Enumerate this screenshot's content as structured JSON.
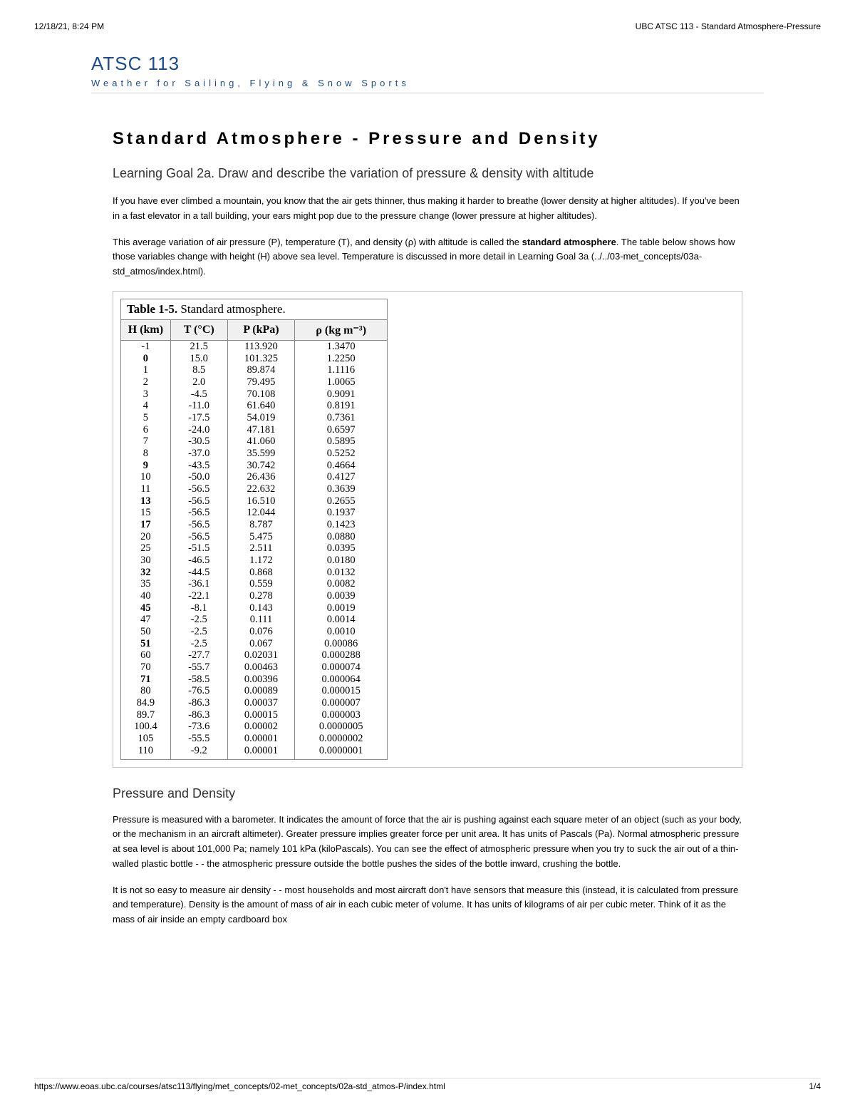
{
  "print": {
    "datetime": "12/18/21, 8:24 PM",
    "doc_title": "UBC ATSC 113 - Standard Atmosphere-Pressure"
  },
  "course": {
    "code": "ATSC 113",
    "subtitle": "Weather for Sailing, Flying & Snow Sports"
  },
  "title": "Standard Atmosphere - Pressure and Density",
  "learning_goal": "Learning Goal 2a. Draw and describe the variation of pressure & density with altitude",
  "para1": "If you have ever climbed a mountain, you know that the air gets thinner, thus making it harder to breathe (lower density at higher altitudes). If you've been in a fast elevator in a tall building, your ears might pop due to the pressure change (lower pressure at higher altitudes).",
  "para2_a": "This average variation of air pressure (P), temperature (T), and density (ρ) with altitude is called the ",
  "para2_bold": "standard atmosphere",
  "para2_b": ". The table below shows how those variables change with height (H) above sea level. Temperature is discussed in more detail in Learning Goal 3a (../../03-met_concepts/03a-std_atmos/index.html).",
  "section2_h": "Pressure and Density",
  "para3": "Pressure is measured with a barometer.  It indicates the amount of force that the air is pushing against each square meter of an object (such as your body, or the mechanism in an aircraft altimeter).  Greater pressure implies greater force per unit area.  It has units of Pascals (Pa).  Normal atmospheric pressure at sea level is about 101,000 Pa; namely 101 kPa (kiloPascals).  You can see the effect of atmospheric pressure when you try to suck the air out of a thin-walled plastic bottle - - the atmospheric pressure outside the bottle pushes the sides of the bottle inward, crushing the bottle.",
  "para4": "It is not so easy to measure air density - - most households and most aircraft don't have sensors that measure this (instead, it is calculated from pressure and temperature).  Density is the amount of mass of air in each cubic meter of volume.  It has units of kilograms of air per cubic meter.  Think of it as the mass of air inside an empty cardboard box",
  "footer": {
    "url": "https://www.eoas.ubc.ca/courses/atsc113/flying/met_concepts/02-met_concepts/02a-std_atmos-P/index.html",
    "page": "1/4"
  },
  "table": {
    "title_label": "Table 1-5.",
    "title_text": "Standard atmosphere.",
    "columns": [
      "H (km)",
      "T (°C)",
      "P (kPa)",
      "ρ (kg m⁻³)"
    ],
    "col_widths": [
      "70px",
      "80px",
      "95px",
      "130px"
    ],
    "header_bg": "#f0f0f0",
    "border_color": "#888888",
    "font_family": "Times New Roman",
    "bold_rows": [
      1,
      10,
      13,
      15,
      19,
      22,
      25,
      28
    ],
    "rows": [
      [
        "-1",
        "21.5",
        "113.920",
        "1.3470"
      ],
      [
        "0",
        "15.0",
        "101.325",
        "1.2250"
      ],
      [
        "1",
        "8.5",
        "89.874",
        "1.1116"
      ],
      [
        "2",
        "2.0",
        "79.495",
        "1.0065"
      ],
      [
        "3",
        "-4.5",
        "70.108",
        "0.9091"
      ],
      [
        "4",
        "-11.0",
        "61.640",
        "0.8191"
      ],
      [
        "5",
        "-17.5",
        "54.019",
        "0.7361"
      ],
      [
        "6",
        "-24.0",
        "47.181",
        "0.6597"
      ],
      [
        "7",
        "-30.5",
        "41.060",
        "0.5895"
      ],
      [
        "8",
        "-37.0",
        "35.599",
        "0.5252"
      ],
      [
        "9",
        "-43.5",
        "30.742",
        "0.4664"
      ],
      [
        "10",
        "-50.0",
        "26.436",
        "0.4127"
      ],
      [
        "11",
        "-56.5",
        "22.632",
        "0.3639"
      ],
      [
        "13",
        "-56.5",
        "16.510",
        "0.2655"
      ],
      [
        "15",
        "-56.5",
        "12.044",
        "0.1937"
      ],
      [
        "17",
        "-56.5",
        "8.787",
        "0.1423"
      ],
      [
        "20",
        "-56.5",
        "5.475",
        "0.0880"
      ],
      [
        "25",
        "-51.5",
        "2.511",
        "0.0395"
      ],
      [
        "30",
        "-46.5",
        "1.172",
        "0.0180"
      ],
      [
        "32",
        "-44.5",
        "0.868",
        "0.0132"
      ],
      [
        "35",
        "-36.1",
        "0.559",
        "0.0082"
      ],
      [
        "40",
        "-22.1",
        "0.278",
        "0.0039"
      ],
      [
        "45",
        "-8.1",
        "0.143",
        "0.0019"
      ],
      [
        "47",
        "-2.5",
        "0.111",
        "0.0014"
      ],
      [
        "50",
        "-2.5",
        "0.076",
        "0.0010"
      ],
      [
        "51",
        "-2.5",
        "0.067",
        "0.00086"
      ],
      [
        "60",
        "-27.7",
        "0.02031",
        "0.000288"
      ],
      [
        "70",
        "-55.7",
        "0.00463",
        "0.000074"
      ],
      [
        "71",
        "-58.5",
        "0.00396",
        "0.000064"
      ],
      [
        "80",
        "-76.5",
        "0.00089",
        "0.000015"
      ],
      [
        "84.9",
        "-86.3",
        "0.00037",
        "0.000007"
      ],
      [
        "89.7",
        "-86.3",
        "0.00015",
        "0.000003"
      ],
      [
        "100.4",
        "-73.6",
        "0.00002",
        "0.0000005"
      ],
      [
        "105",
        "-55.5",
        "0.00001",
        "0.0000002"
      ],
      [
        "110",
        "-9.2",
        "0.00001",
        "0.0000001"
      ]
    ]
  }
}
